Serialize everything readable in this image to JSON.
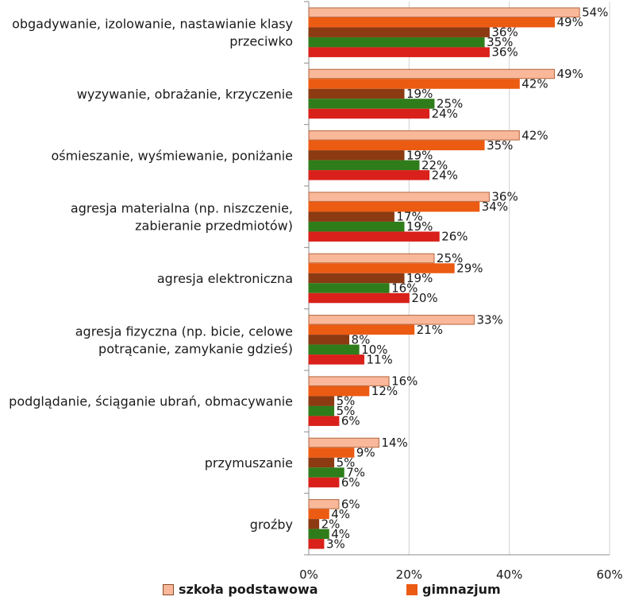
{
  "chart_data": {
    "type": "bar",
    "orientation": "horizontal",
    "categories": [
      "obgadywanie, izolowanie, nastawianie klasy przeciwko",
      "wyzywanie, obrażanie, krzyczenie",
      "ośmieszanie, wyśmiewanie, poniżanie",
      "agresja materialna (np. niszczenie, zabieranie przedmiotów)",
      "agresja elektroniczna",
      "agresja fizyczna (np. bicie, celowe potrącanie, zamykanie gdzieś)",
      "podglądanie, ściąganie ubrań, obmacywanie",
      "przymuszanie",
      "groźby"
    ],
    "category_lines": [
      [
        "obgadywanie, izolowanie, nastawianie klasy",
        "przeciwko"
      ],
      [
        "wyzywanie, obrażanie, krzyczenie"
      ],
      [
        "ośmieszanie, wyśmiewanie, poniżanie"
      ],
      [
        "agresja materialna (np. niszczenie,",
        "zabieranie przedmiotów)"
      ],
      [
        "agresja elektroniczna"
      ],
      [
        "agresja fizyczna (np. bicie, celowe",
        "potrącanie, zamykanie gdzieś)"
      ],
      [
        "podglądanie, ściąganie ubrań, obmacywanie"
      ],
      [
        "przymuszanie"
      ],
      [
        "groźby"
      ]
    ],
    "series": [
      {
        "name": "szkoła podstawowa",
        "color": "#f9b89a",
        "stroke": "#b5653c",
        "values": [
          54,
          49,
          42,
          36,
          25,
          33,
          16,
          14,
          6
        ]
      },
      {
        "name": "gimnazjum",
        "color": "#ec5b12",
        "stroke": "#ec5b12",
        "values": [
          49,
          42,
          35,
          34,
          29,
          21,
          12,
          9,
          4
        ]
      },
      {
        "name": "",
        "color": "#8b3a12",
        "stroke": "#8b3a12",
        "values": [
          36,
          19,
          19,
          17,
          19,
          8,
          5,
          5,
          2
        ]
      },
      {
        "name": "",
        "color": "#2e7d1a",
        "stroke": "#2e7d1a",
        "values": [
          35,
          25,
          22,
          19,
          16,
          10,
          5,
          7,
          4
        ]
      },
      {
        "name": "",
        "color": "#d9201a",
        "stroke": "#d9201a",
        "values": [
          36,
          24,
          24,
          26,
          20,
          11,
          6,
          6,
          3
        ]
      }
    ],
    "value_suffix": "%",
    "xlim": [
      0,
      60
    ],
    "x_ticks": [
      "0%",
      "20%",
      "40%",
      "60%"
    ],
    "grid": true,
    "legend_position": "bottom"
  }
}
